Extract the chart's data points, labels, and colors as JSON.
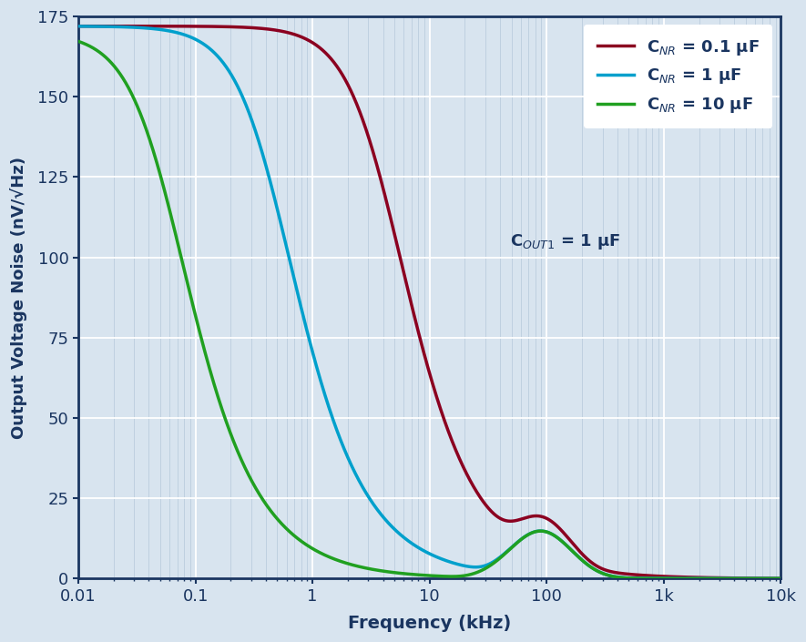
{
  "title": "",
  "xlabel": "Frequency (kHz)",
  "ylabel": "Output Voltage Noise (nV/√Hz)",
  "xlim": [
    0.01,
    10000
  ],
  "ylim": [
    0,
    175
  ],
  "yticks": [
    0,
    25,
    50,
    75,
    100,
    125,
    150,
    175
  ],
  "bg_color": "#d8e4ef",
  "fig_color": "#d8e4ef",
  "border_color": "#1a3560",
  "text_color": "#1a3560",
  "grid_major_color": "#ffffff",
  "grid_minor_color": "#bfd0e0",
  "curve1_color": "#8b0020",
  "curve2_color": "#00a0cc",
  "curve3_color": "#20a020",
  "legend_labels": [
    "C$_{NR}$ = 0.1 μF",
    "C$_{NR}$ = 1 μF",
    "C$_{NR}$ = 10 μF"
  ],
  "annotation": "C$_{OUT1}$ = 1 μF",
  "line_width": 2.5
}
